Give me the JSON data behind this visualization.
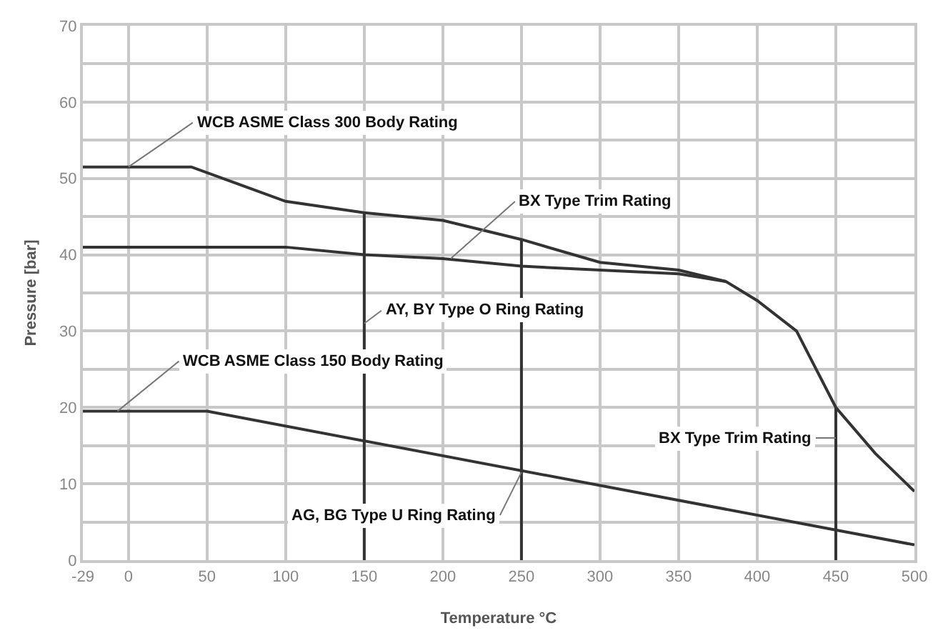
{
  "chart_data": {
    "type": "line",
    "xlabel": "Temperature °C",
    "ylabel": "Pressure [bar]",
    "xlim": [
      -29,
      500
    ],
    "xticks": [
      -29,
      0,
      50,
      100,
      150,
      200,
      250,
      300,
      350,
      400,
      450,
      500
    ],
    "ylim": [
      0,
      70
    ],
    "yticks": [
      0,
      {
        "value": 5,
        "label": null
      },
      10,
      {
        "value": 15,
        "label": null
      },
      20,
      {
        "value": 25,
        "label": null
      },
      30,
      {
        "value": 35,
        "label": null
      },
      40,
      {
        "value": 45,
        "label": null
      },
      50,
      {
        "value": 55,
        "label": null
      },
      60,
      {
        "value": 65,
        "label": null
      },
      70
    ],
    "grid": true,
    "marker": "none",
    "line_style": "solid",
    "series": [
      {
        "color": "#333333",
        "x": [
          -29,
          40,
          100,
          150,
          200,
          250,
          300,
          350,
          380,
          400,
          425,
          450,
          475,
          500
        ],
        "values": [
          51.5,
          51.5,
          47,
          45.5,
          44.5,
          42,
          39,
          38,
          36.5,
          34,
          30,
          20,
          14,
          9
        ]
      },
      {
        "color": "#333333",
        "x": [
          -29,
          100,
          150,
          200,
          250,
          300,
          350,
          380
        ],
        "values": [
          41,
          41,
          40,
          39.5,
          38.5,
          38,
          37.5,
          36.5
        ]
      },
      {
        "color": "#333333",
        "x": [
          -29,
          50,
          500
        ],
        "values": [
          19.5,
          19.5,
          2
        ]
      },
      {
        "color": "#333333",
        "x": [
          150,
          150
        ],
        "values": [
          0,
          45.5
        ]
      },
      {
        "color": "#333333",
        "x": [
          250,
          250
        ],
        "values": [
          0,
          42
        ]
      },
      {
        "color": "#333333",
        "x": [
          450,
          450
        ],
        "values": [
          0,
          20
        ]
      }
    ],
    "annotations": [
      {
        "text": "WCB ASME Class 300 Body Rating",
        "x": 0,
        "y": 51.5
      },
      {
        "text": "BX Type Trim Rating",
        "x": 205,
        "y": 39.5
      },
      {
        "text": "AY, BY Type O Ring Rating",
        "x": 150,
        "y": 31
      },
      {
        "text": "WCB ASME Class 150 Body Rating",
        "x": -7,
        "y": 19.5
      },
      {
        "text": "AG, BG Type U Ring Rating",
        "x": 250,
        "y": 11.5
      },
      {
        "text": "BX Type Trim Rating",
        "x": 450,
        "y": 16
      }
    ]
  }
}
